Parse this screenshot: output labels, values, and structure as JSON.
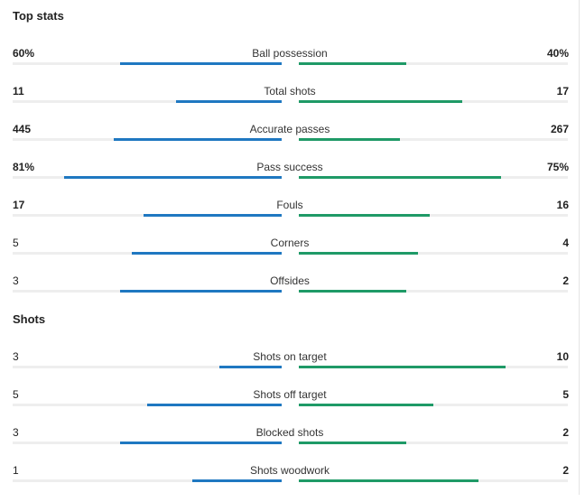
{
  "sections": [
    {
      "title": "Top stats",
      "stats": [
        {
          "label": "Ball possession",
          "home": "60%",
          "away": "40%",
          "home_frac": 0.6,
          "away_frac": 0.4
        },
        {
          "label": "Total shots",
          "home": "11",
          "away": "17",
          "home_frac": 0.393,
          "away_frac": 0.607
        },
        {
          "label": "Accurate passes",
          "home": "445",
          "away": "267",
          "home_frac": 0.625,
          "away_frac": 0.375
        },
        {
          "label": "Pass success",
          "home": "81%",
          "away": "75%",
          "home_frac": 0.81,
          "away_frac": 0.75
        },
        {
          "label": "Fouls",
          "home": "17",
          "away": "16",
          "home_frac": 0.515,
          "away_frac": 0.485
        },
        {
          "label": "Corners",
          "home": "5",
          "away": "4",
          "home_frac": 0.556,
          "away_frac": 0.444
        },
        {
          "label": "Offsides",
          "home": "3",
          "away": "2",
          "home_frac": 0.6,
          "away_frac": 0.4
        }
      ]
    },
    {
      "title": "Shots",
      "stats": [
        {
          "label": "Shots on target",
          "home": "3",
          "away": "10",
          "home_frac": 0.231,
          "away_frac": 0.769
        },
        {
          "label": "Shots off target",
          "home": "5",
          "away": "5",
          "home_frac": 0.5,
          "away_frac": 0.5
        },
        {
          "label": "Blocked shots",
          "home": "3",
          "away": "2",
          "home_frac": 0.6,
          "away_frac": 0.4
        },
        {
          "label": "Shots woodwork",
          "home": "1",
          "away": "2",
          "home_frac": 0.333,
          "away_frac": 0.667
        }
      ]
    }
  ],
  "colors": {
    "home": "#1f78c1",
    "away": "#1f9a67",
    "track": "#eeeeee"
  }
}
